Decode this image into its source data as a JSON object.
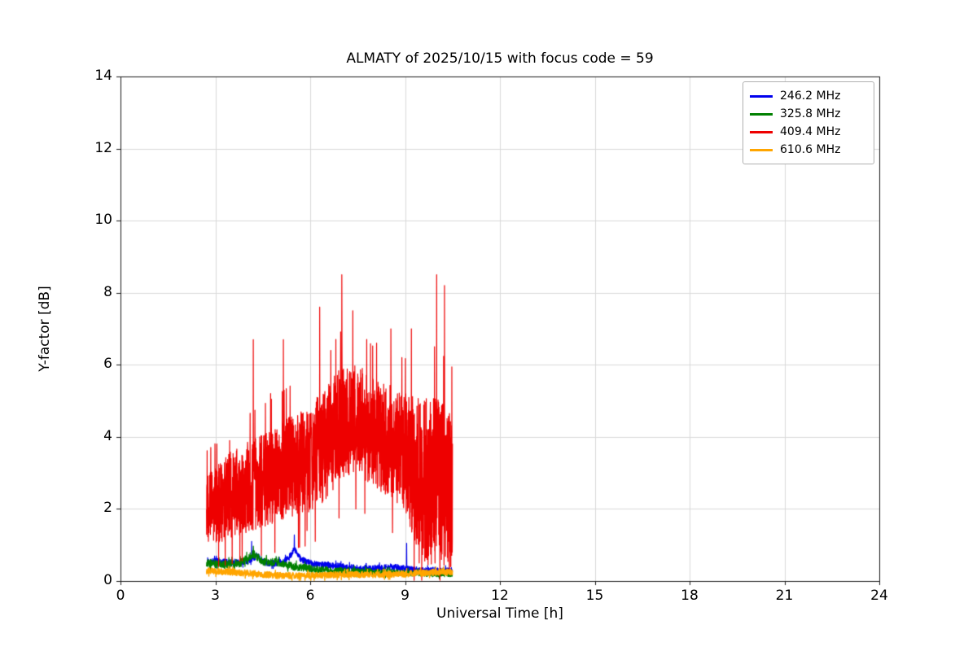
{
  "chart_data": {
    "type": "line",
    "title": "ALMATY of 2025/10/15 with focus code = 59",
    "xlabel": "Universal Time [h]",
    "ylabel": "Y-factor [dB]",
    "xlim": [
      0,
      24
    ],
    "ylim": [
      0,
      14
    ],
    "x_ticks": [
      0,
      3,
      6,
      9,
      12,
      15,
      18,
      21,
      24
    ],
    "y_ticks": [
      0,
      2,
      4,
      6,
      8,
      10,
      12,
      14
    ],
    "grid": true,
    "legend_position": "upper right",
    "noise_seed": 7,
    "series": [
      {
        "name": "246.2 MHz",
        "color": "#0000ee",
        "x_start": 2.75,
        "x_end": 10.5,
        "step": 0.006,
        "linewidth": 1.2,
        "baseline": [
          [
            2.75,
            0.55
          ],
          [
            3.5,
            0.5
          ],
          [
            4.0,
            0.55
          ],
          [
            4.3,
            0.7
          ],
          [
            4.6,
            0.5
          ],
          [
            5.0,
            0.5
          ],
          [
            5.3,
            0.6
          ],
          [
            5.5,
            0.9
          ],
          [
            5.7,
            0.6
          ],
          [
            6.0,
            0.5
          ],
          [
            6.5,
            0.45
          ],
          [
            7.0,
            0.4
          ],
          [
            7.5,
            0.35
          ],
          [
            8.0,
            0.35
          ],
          [
            8.5,
            0.4
          ],
          [
            9.0,
            0.35
          ],
          [
            9.5,
            0.3
          ],
          [
            10.0,
            0.3
          ],
          [
            10.5,
            0.3
          ]
        ],
        "amp": [
          [
            2.75,
            0.1
          ],
          [
            10.5,
            0.08
          ]
        ],
        "spikes": [
          [
            4.15,
            1.1
          ],
          [
            5.5,
            1.28
          ],
          [
            9.05,
            1.05
          ]
        ]
      },
      {
        "name": "325.8 MHz",
        "color": "#008000",
        "x_start": 2.72,
        "x_end": 10.5,
        "step": 0.006,
        "linewidth": 1.2,
        "baseline": [
          [
            2.72,
            0.5
          ],
          [
            3.2,
            0.45
          ],
          [
            3.8,
            0.5
          ],
          [
            4.2,
            0.75
          ],
          [
            4.5,
            0.55
          ],
          [
            5.0,
            0.5
          ],
          [
            5.5,
            0.4
          ],
          [
            6.0,
            0.35
          ],
          [
            6.5,
            0.3
          ],
          [
            7.0,
            0.28
          ],
          [
            8.0,
            0.25
          ],
          [
            9.0,
            0.22
          ],
          [
            10.0,
            0.2
          ],
          [
            10.5,
            0.2
          ]
        ],
        "amp": [
          [
            2.72,
            0.12
          ],
          [
            10.5,
            0.08
          ]
        ],
        "spikes": [
          [
            4.2,
            0.97
          ]
        ]
      },
      {
        "name": "409.4 MHz",
        "color": "#ee0000",
        "x_start": 2.72,
        "x_end": 10.5,
        "step": 0.004,
        "linewidth": 1.2,
        "baseline": [
          [
            2.72,
            2.0
          ],
          [
            3.0,
            2.1
          ],
          [
            3.5,
            2.4
          ],
          [
            4.0,
            2.6
          ],
          [
            4.5,
            2.8
          ],
          [
            5.0,
            3.0
          ],
          [
            5.5,
            3.2
          ],
          [
            6.0,
            3.4
          ],
          [
            6.5,
            3.8
          ],
          [
            7.0,
            4.4
          ],
          [
            7.5,
            4.5
          ],
          [
            8.0,
            4.1
          ],
          [
            8.5,
            3.9
          ],
          [
            9.0,
            3.6
          ],
          [
            9.5,
            2.8
          ],
          [
            10.0,
            2.8
          ],
          [
            10.5,
            2.4
          ]
        ],
        "amp": [
          [
            2.72,
            1.0
          ],
          [
            3.5,
            1.2
          ],
          [
            4.5,
            1.3
          ],
          [
            6.0,
            1.5
          ],
          [
            7.0,
            1.6
          ],
          [
            8.0,
            1.5
          ],
          [
            9.0,
            1.6
          ],
          [
            9.5,
            2.4
          ],
          [
            10.5,
            2.2
          ]
        ],
        "spikes": [
          [
            3.05,
            3.8
          ],
          [
            3.45,
            3.9
          ],
          [
            4.2,
            6.7
          ],
          [
            4.75,
            5.2
          ],
          [
            5.15,
            6.7
          ],
          [
            5.9,
            1.4
          ],
          [
            6.3,
            7.6
          ],
          [
            6.65,
            6.4
          ],
          [
            7.0,
            8.5
          ],
          [
            7.35,
            7.5
          ],
          [
            8.1,
            6.6
          ],
          [
            8.55,
            7.0
          ],
          [
            8.9,
            6.2
          ],
          [
            9.2,
            7.0
          ],
          [
            9.45,
            0.5
          ],
          [
            9.7,
            0.6
          ],
          [
            9.95,
            0.5
          ],
          [
            10.0,
            8.5
          ],
          [
            10.15,
            0.6
          ],
          [
            10.25,
            8.2
          ],
          [
            10.45,
            0.4
          ]
        ]
      },
      {
        "name": "610.6 MHz",
        "color": "#ffa500",
        "x_start": 2.72,
        "x_end": 10.5,
        "step": 0.005,
        "linewidth": 1.4,
        "baseline": [
          [
            2.72,
            0.28
          ],
          [
            3.5,
            0.25
          ],
          [
            4.0,
            0.22
          ],
          [
            4.5,
            0.18
          ],
          [
            5.0,
            0.15
          ],
          [
            6.0,
            0.15
          ],
          [
            7.0,
            0.18
          ],
          [
            8.0,
            0.18
          ],
          [
            9.0,
            0.2
          ],
          [
            9.5,
            0.22
          ],
          [
            10.0,
            0.25
          ],
          [
            10.5,
            0.25
          ]
        ],
        "amp": [
          [
            2.72,
            0.09
          ],
          [
            10.5,
            0.09
          ]
        ],
        "spikes": []
      }
    ],
    "axes": {
      "grid_color": "#d9d9d9",
      "spine_color": "#1a1a1a",
      "tick_color": "#1a1a1a"
    }
  }
}
